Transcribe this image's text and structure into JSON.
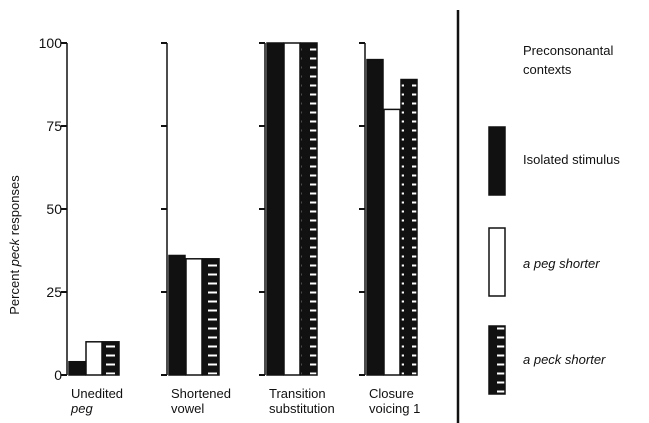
{
  "chart_data": {
    "type": "bar",
    "ylabel_prefix": "Percent ",
    "ylabel_italic": "peck",
    "ylabel_suffix": " responses",
    "ylim": [
      0,
      100
    ],
    "yticks": [
      0,
      25,
      50,
      75,
      100
    ],
    "groups": [
      {
        "label_lines": [
          "Unedited",
          "peg"
        ],
        "italic_lines": [
          false,
          true
        ],
        "values": [
          4,
          10,
          10
        ]
      },
      {
        "label_lines": [
          "Shortened",
          "vowel"
        ],
        "italic_lines": [
          false,
          false
        ],
        "values": [
          36,
          35,
          35
        ]
      },
      {
        "label_lines": [
          "Transition",
          "substitution"
        ],
        "italic_lines": [
          false,
          false
        ],
        "values": [
          100,
          100,
          100
        ]
      },
      {
        "label_lines": [
          "Closure",
          "voicing 1"
        ],
        "italic_lines": [
          false,
          false
        ],
        "values": [
          95,
          80,
          89
        ]
      }
    ],
    "legend": {
      "title_lines": [
        "Preconsonantal",
        "contexts"
      ],
      "items": [
        {
          "name": "Isolated stimulus",
          "italic": false,
          "fill": "#111111",
          "pattern": "solid"
        },
        {
          "name": "a peg shorter",
          "italic": true,
          "fill": "#ffffff",
          "pattern": "open"
        },
        {
          "name": "a peck shorter",
          "italic": true,
          "fill": "#111111",
          "pattern": "dashed"
        }
      ]
    }
  }
}
